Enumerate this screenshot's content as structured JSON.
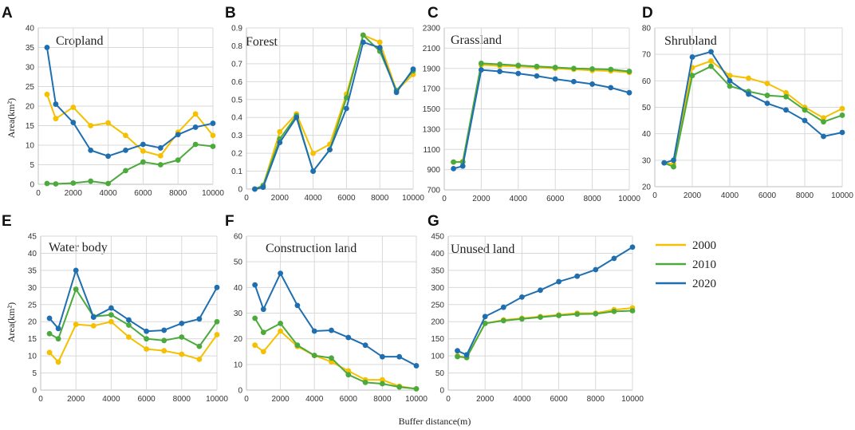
{
  "figure": {
    "xlabel": "Buffer distance(m)",
    "ylabel": "Area(km²)"
  },
  "series_colors": {
    "2000": "#f5c000",
    "2010": "#4caa3c",
    "2020": "#1f6fb0"
  },
  "legend": [
    "2000",
    "2010",
    "2020"
  ],
  "chart_data": [
    {
      "panel": "A",
      "type": "line",
      "title": "Cropland",
      "x": [
        500,
        1000,
        2000,
        3000,
        4000,
        5000,
        6000,
        7000,
        8000,
        9000,
        10000
      ],
      "xlim": [
        0,
        10000
      ],
      "xticks": [
        "0",
        "2000",
        "4000",
        "6000",
        "8000",
        "10000"
      ],
      "ylim": [
        0,
        40
      ],
      "yticks": [
        "0",
        "5",
        "10",
        "15",
        "20",
        "25",
        "30",
        "35",
        "40"
      ],
      "series": [
        {
          "name": "2000",
          "values": [
            23,
            16.8,
            19.7,
            15,
            15.7,
            12.5,
            8.5,
            7.3,
            13.3,
            18,
            12.5
          ]
        },
        {
          "name": "2010",
          "values": [
            0.2,
            0.1,
            0.3,
            0.8,
            0.2,
            3.5,
            5.7,
            5,
            6.2,
            10.2,
            9.7
          ]
        },
        {
          "name": "2020",
          "values": [
            35,
            20.5,
            15.8,
            8.7,
            7.2,
            8.7,
            10.2,
            9.3,
            12.7,
            14.6,
            15.6
          ]
        }
      ]
    },
    {
      "panel": "B",
      "type": "line",
      "title": "Forest",
      "x": [
        500,
        1000,
        2000,
        3000,
        4000,
        5000,
        6000,
        7000,
        8000,
        9000,
        10000
      ],
      "xlim": [
        0,
        10000
      ],
      "xticks": [
        "0",
        "2000",
        "4000",
        "6000",
        "8000",
        "10000"
      ],
      "ylim": [
        0,
        0.9
      ],
      "yticks": [
        "0",
        "0.1",
        "0.2",
        "0.3",
        "0.4",
        "0.5",
        "0.6",
        "0.7",
        "0.8",
        "0.9"
      ],
      "series": [
        {
          "name": "2000",
          "values": [
            0,
            0.02,
            0.32,
            0.42,
            0.2,
            0.25,
            0.53,
            0.86,
            0.82,
            0.55,
            0.64
          ]
        },
        {
          "name": "2010",
          "values": [
            0,
            0.02,
            0.28,
            0.41,
            0.1,
            0.22,
            0.51,
            0.86,
            0.77,
            0.55,
            0.66
          ]
        },
        {
          "name": "2020",
          "values": [
            0,
            0.01,
            0.26,
            0.4,
            0.1,
            0.22,
            0.45,
            0.82,
            0.79,
            0.54,
            0.67
          ]
        }
      ]
    },
    {
      "panel": "C",
      "type": "line",
      "title": "Grassland",
      "x": [
        500,
        1000,
        2000,
        3000,
        4000,
        5000,
        6000,
        7000,
        8000,
        9000,
        10000
      ],
      "xlim": [
        0,
        10000
      ],
      "xticks": [
        "0",
        "2000",
        "4000",
        "6000",
        "8000",
        "10000"
      ],
      "ylim": [
        700,
        2300
      ],
      "yticks": [
        "700",
        "900",
        "1100",
        "1300",
        "1500",
        "1700",
        "1900",
        "2100",
        "2300"
      ],
      "series": [
        {
          "name": "2000",
          "values": [
            975,
            980,
            1935,
            1925,
            1920,
            1910,
            1900,
            1890,
            1880,
            1875,
            1860
          ]
        },
        {
          "name": "2010",
          "values": [
            975,
            975,
            1950,
            1940,
            1930,
            1920,
            1910,
            1900,
            1895,
            1890,
            1870
          ]
        },
        {
          "name": "2020",
          "values": [
            910,
            935,
            1885,
            1870,
            1850,
            1825,
            1795,
            1770,
            1745,
            1710,
            1660
          ]
        }
      ]
    },
    {
      "panel": "D",
      "type": "line",
      "title": "Shrubland",
      "x": [
        500,
        1000,
        2000,
        3000,
        4000,
        5000,
        6000,
        7000,
        8000,
        9000,
        10000
      ],
      "xlim": [
        0,
        10000
      ],
      "xticks": [
        "0",
        "2000",
        "4000",
        "6000",
        "8000",
        "10000"
      ],
      "ylim": [
        20,
        80
      ],
      "yticks": [
        "20",
        "30",
        "40",
        "50",
        "60",
        "70",
        "80"
      ],
      "series": [
        {
          "name": "2000",
          "values": [
            29,
            28.5,
            65,
            67.5,
            62,
            61,
            59,
            55.5,
            50,
            46,
            49.5
          ]
        },
        {
          "name": "2010",
          "values": [
            29,
            27.5,
            62,
            65.5,
            58,
            56,
            54.5,
            54,
            49,
            44.5,
            47
          ]
        },
        {
          "name": "2020",
          "values": [
            29,
            30,
            69,
            71,
            60,
            55,
            51.5,
            49,
            45,
            39,
            40.5
          ]
        }
      ]
    },
    {
      "panel": "E",
      "type": "line",
      "title": "Water body",
      "x": [
        500,
        1000,
        2000,
        3000,
        4000,
        5000,
        6000,
        7000,
        8000,
        9000,
        10000
      ],
      "xlim": [
        0,
        10000
      ],
      "xticks": [
        "0",
        "2000",
        "4000",
        "6000",
        "8000",
        "10000"
      ],
      "ylim": [
        0,
        45
      ],
      "yticks": [
        "0",
        "5",
        "10",
        "15",
        "20",
        "25",
        "30",
        "35",
        "40",
        "45"
      ],
      "series": [
        {
          "name": "2000",
          "values": [
            11,
            8.2,
            19.2,
            18.8,
            20,
            15.5,
            12,
            11.5,
            10.5,
            9,
            16.2
          ]
        },
        {
          "name": "2010",
          "values": [
            16.5,
            15,
            29.5,
            21.5,
            22,
            19,
            15,
            14.5,
            15.5,
            12.8,
            20
          ]
        },
        {
          "name": "2020",
          "values": [
            21,
            18,
            35,
            21.3,
            24,
            20.5,
            17.2,
            17.5,
            19.5,
            20.8,
            30
          ]
        }
      ]
    },
    {
      "panel": "F",
      "type": "line",
      "title": "Construction land",
      "x": [
        500,
        1000,
        2000,
        3000,
        4000,
        5000,
        6000,
        7000,
        8000,
        9000,
        10000
      ],
      "xlim": [
        0,
        10000
      ],
      "xticks": [
        "0",
        "2000",
        "4000",
        "6000",
        "8000",
        "10000"
      ],
      "ylim": [
        0,
        60
      ],
      "yticks": [
        "0",
        "10",
        "20",
        "30",
        "40",
        "50",
        "60"
      ],
      "series": [
        {
          "name": "2000",
          "values": [
            17.5,
            15,
            23,
            17,
            13.5,
            11,
            7.5,
            4,
            4,
            1.5,
            0.5
          ]
        },
        {
          "name": "2010",
          "values": [
            28,
            22.5,
            26,
            17.5,
            13.5,
            12.5,
            6,
            3,
            2.5,
            1.2,
            0.5
          ]
        },
        {
          "name": "2020",
          "values": [
            41,
            31.5,
            45.5,
            33,
            23,
            23.3,
            20.5,
            17.5,
            13,
            13,
            9.5
          ]
        }
      ]
    },
    {
      "panel": "G",
      "type": "line",
      "title": "Unused land",
      "x": [
        500,
        1000,
        2000,
        3000,
        4000,
        5000,
        6000,
        7000,
        8000,
        9000,
        10000
      ],
      "xlim": [
        0,
        10000
      ],
      "xticks": [
        "0",
        "2000",
        "4000",
        "6000",
        "8000",
        "10000"
      ],
      "ylim": [
        0,
        450
      ],
      "yticks": [
        "0",
        "50",
        "100",
        "150",
        "200",
        "250",
        "300",
        "350",
        "400",
        "450"
      ],
      "series": [
        {
          "name": "2000",
          "values": [
            100,
            95,
            195,
            205,
            210,
            215,
            220,
            225,
            225,
            235,
            240
          ]
        },
        {
          "name": "2010",
          "values": [
            98,
            95,
            195,
            203,
            208,
            213,
            218,
            222,
            223,
            230,
            232
          ]
        },
        {
          "name": "2020",
          "values": [
            115,
            103,
            215,
            242,
            272,
            292,
            317,
            333,
            352,
            385,
            418
          ]
        }
      ]
    }
  ]
}
